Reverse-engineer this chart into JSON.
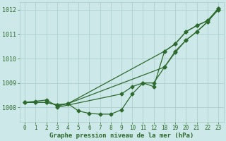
{
  "title": "Graphe pression niveau de la mer (hPa)",
  "bg_color": "#cce8e8",
  "grid_color": "#aacccc",
  "line_color": "#2d6a2d",
  "ylim": [
    1007.4,
    1012.3
  ],
  "yticks": [
    1008,
    1009,
    1010,
    1011,
    1012
  ],
  "xtick_labels": [
    "0",
    "1",
    "2",
    "3",
    "4",
    "5",
    "6",
    "7",
    "8",
    "9",
    "10",
    "11",
    "12",
    "18",
    "19",
    "20",
    "21",
    "22",
    "23"
  ],
  "n_xticks": 19,
  "line1_xi": [
    0,
    1,
    2,
    3,
    4,
    5,
    6,
    7,
    8,
    9,
    10,
    11,
    12,
    13,
    14,
    15,
    16,
    17,
    18
  ],
  "line1_y": [
    1008.2,
    1008.25,
    1008.3,
    1008.05,
    1008.15,
    1007.85,
    1007.75,
    1007.72,
    1007.72,
    1007.9,
    1008.55,
    1009.0,
    1009.0,
    1009.65,
    1010.25,
    1010.75,
    1011.1,
    1011.5,
    1012.0
  ],
  "line2_xi": [
    0,
    1,
    2,
    3,
    4,
    13,
    14,
    15,
    16,
    17,
    18
  ],
  "line2_y": [
    1008.2,
    1008.2,
    1008.2,
    1008.1,
    1008.15,
    1010.3,
    1010.6,
    1011.1,
    1011.35,
    1011.55,
    1012.0
  ],
  "line3_xi": [
    0,
    1,
    2,
    3,
    4,
    13,
    14,
    15,
    16,
    17,
    18
  ],
  "line3_y": [
    1008.2,
    1008.2,
    1008.2,
    1008.1,
    1008.15,
    1009.65,
    1010.3,
    1010.75,
    1011.1,
    1011.5,
    1012.05
  ],
  "line4_xi": [
    3,
    9,
    10,
    11,
    12,
    13,
    14,
    15,
    16,
    17,
    18
  ],
  "line4_y": [
    1008.0,
    1008.55,
    1008.85,
    1009.0,
    1008.85,
    1010.3,
    1010.6,
    1011.1,
    1011.35,
    1011.55,
    1012.05
  ]
}
